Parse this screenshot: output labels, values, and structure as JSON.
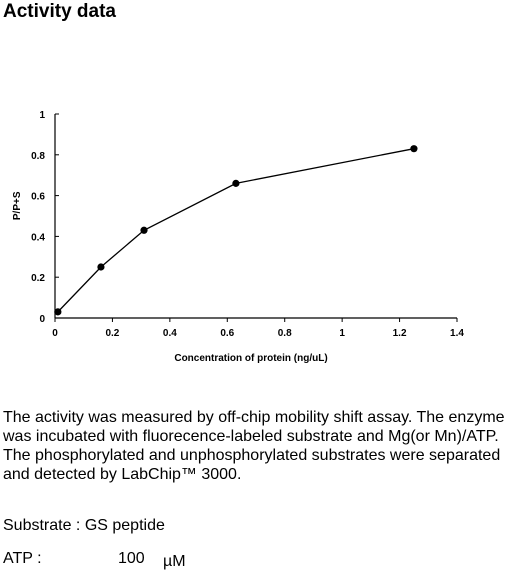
{
  "title": "Activity data",
  "chart_data": {
    "type": "line",
    "xlabel": "Concentration of protein (ng/uL)",
    "ylabel": "P/P+S",
    "xlim": [
      0,
      1.4
    ],
    "ylim": [
      0,
      1
    ],
    "x_ticks": [
      "0",
      "0.2",
      "0.4",
      "0.6",
      "0.8",
      "1",
      "1.2",
      "1.4"
    ],
    "y_ticks": [
      "0",
      "0.2",
      "0.4",
      "0.6",
      "0.8",
      "1"
    ],
    "x": [
      0.01,
      0.16,
      0.31,
      0.63,
      1.25
    ],
    "y": [
      0.03,
      0.25,
      0.43,
      0.66,
      0.83
    ],
    "grid": false,
    "line_color": "#000000"
  },
  "description": "The activity was measured by off-chip mobility shift assay. The enzyme was incubated with fluorecence-labeled  substrate and Mg(or Mn)/ATP. The phosphorylated and unphosphorylated substrates were separated and detected by LabChip™ 3000.",
  "substrate": {
    "label": "Substrate : GS peptide"
  },
  "atp": {
    "label": "ATP :",
    "value": "100",
    "unit": "µM"
  }
}
